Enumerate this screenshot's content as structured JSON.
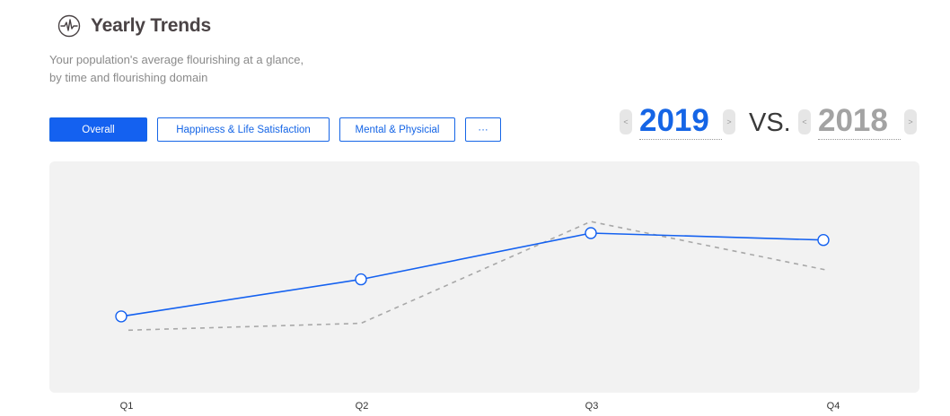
{
  "header": {
    "title": "Yearly Trends",
    "icon": "waveform-icon",
    "subtitle_line1": "Your population's average flourishing at a glance,",
    "subtitle_line2": "by time and flourishing domain"
  },
  "tabs": [
    {
      "label": "Overall",
      "active": true
    },
    {
      "label": "Happiness & Life Satisfaction",
      "active": false
    },
    {
      "label": "Mental & Physicial",
      "active": false
    },
    {
      "label": "···",
      "active": false
    }
  ],
  "comparison": {
    "primary_year": "2019",
    "vs_label": "VS.",
    "secondary_year": "2018",
    "prev_arrow": "<",
    "next_arrow": ">"
  },
  "colors": {
    "accent": "#1461f0",
    "comparison": "#a8a8a8",
    "panel": "#f2f2f2"
  },
  "chart_data": {
    "type": "line",
    "categories": [
      "Q1",
      "Q2",
      "Q3",
      "Q4"
    ],
    "grid": false,
    "ylim": [
      0,
      10
    ],
    "series": [
      {
        "year": "2019",
        "values": [
          3.3,
          4.9,
          6.9,
          6.6
        ],
        "style": "solid",
        "color": "#1461f0",
        "markers": true
      },
      {
        "year": "2018",
        "values": [
          2.7,
          3.0,
          7.4,
          5.3
        ],
        "style": "dashed",
        "color": "#a8a8a8",
        "markers": false
      }
    ]
  }
}
